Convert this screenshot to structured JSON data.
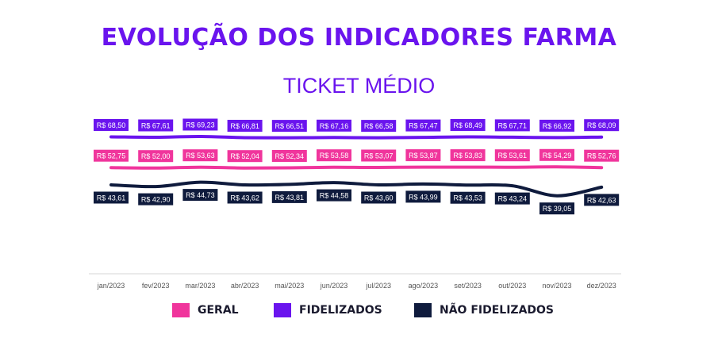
{
  "title": "EVOLUÇÃO DOS INDICADORES FARMA",
  "subtitle": "TICKET MÉDIO",
  "chart_data": {
    "type": "line",
    "title": "EVOLUÇÃO DOS INDICADORES FARMA",
    "subtitle": "TICKET MÉDIO",
    "categories": [
      "jan/2023",
      "fev/2023",
      "mar/2023",
      "abr/2023",
      "mai/2023",
      "jun/2023",
      "jul/2023",
      "ago/2023",
      "set/2023",
      "out/2023",
      "nov/2023",
      "dez/2023"
    ],
    "series": [
      {
        "name": "FIDELIZADOS",
        "color": "#6a14ee",
        "values": [
          68.5,
          67.61,
          69.23,
          66.81,
          66.51,
          67.16,
          66.58,
          67.47,
          68.49,
          67.71,
          66.92,
          68.09
        ],
        "labels": [
          "R$ 68,50",
          "R$ 67,61",
          "R$ 69,23",
          "R$ 66,81",
          "R$ 66,51",
          "R$ 67,16",
          "R$ 66,58",
          "R$ 67,47",
          "R$ 68,49",
          "R$ 67,71",
          "R$ 66,92",
          "R$ 68,09"
        ]
      },
      {
        "name": "GERAL",
        "color": "#f0359c",
        "values": [
          52.75,
          52.0,
          53.63,
          52.04,
          52.34,
          53.58,
          53.07,
          53.87,
          53.83,
          53.61,
          54.29,
          52.76
        ],
        "labels": [
          "R$ 52,75",
          "R$ 52,00",
          "R$ 53,63",
          "R$ 52,04",
          "R$ 52,34",
          "R$ 53,58",
          "R$ 53,07",
          "R$ 53,87",
          "R$ 53,83",
          "R$ 53,61",
          "R$ 54,29",
          "R$ 52,76"
        ]
      },
      {
        "name": "NÃO FIDELIZADOS",
        "color": "#0f1b3d",
        "values": [
          43.61,
          42.9,
          44.73,
          43.62,
          43.81,
          44.58,
          43.6,
          43.99,
          43.53,
          43.24,
          39.05,
          42.63
        ],
        "labels": [
          "R$ 43,61",
          "R$ 42,90",
          "R$ 44,73",
          "R$ 43,62",
          "R$ 43,81",
          "R$ 44,58",
          "R$ 43,60",
          "R$ 43,99",
          "R$ 43,53",
          "R$ 43,24",
          "R$ 39,05",
          "R$ 42,63"
        ]
      }
    ],
    "legend": [
      {
        "label": "GERAL",
        "color": "#f0359c"
      },
      {
        "label": "FIDELIZADOS",
        "color": "#6a14ee"
      },
      {
        "label": "NÃO FIDELIZADOS",
        "color": "#0f1b3d"
      }
    ],
    "legend_position": "bottom",
    "grid": false
  }
}
